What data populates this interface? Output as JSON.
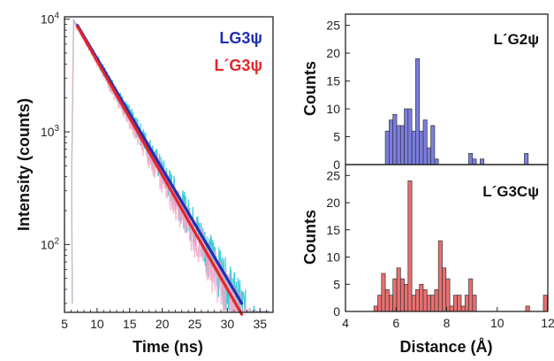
{
  "chart_data": [
    {
      "type": "line",
      "xlabel": "Time (ns)",
      "ylabel": "Intensity (counts)",
      "xlim": [
        5,
        37
      ],
      "ylim": [
        25,
        10500
      ],
      "yscale": "log",
      "x_ticks": [
        "5",
        "10",
        "15",
        "20",
        "25",
        "30",
        "35"
      ],
      "y_ticks": [
        {
          "base": "10",
          "exp": "4",
          "value": 10000
        },
        {
          "base": "10",
          "exp": "3",
          "value": 1000
        },
        {
          "base": "10",
          "exp": "2",
          "value": 100
        }
      ],
      "series": [
        {
          "name": "LG3ψ",
          "color": "#1f2fb4",
          "data_color": "#2cc6d6",
          "fit": {
            "x": [
              7,
              32.2
            ],
            "y": [
              8800,
              30
            ]
          },
          "peak_x": 6.4
        },
        {
          "name": "L´G3ψ",
          "color": "#e3262a",
          "data_color": "#f4a7c8",
          "fit": {
            "x": [
              7,
              32.2
            ],
            "y": [
              8600,
              24
            ]
          },
          "peak_x": 6.4
        }
      ],
      "legend_position": "top-right"
    },
    {
      "type": "bar",
      "label": "L´G2ψ",
      "ylabel": "Counts",
      "ylim": [
        0,
        27
      ],
      "xlim": [
        4,
        12
      ],
      "y_ticks": [
        "0",
        "5",
        "10",
        "15",
        "20",
        "25"
      ],
      "bin_width": 0.15,
      "color": "#7b7de2",
      "bins": [
        {
          "x": 5.65,
          "y": 6
        },
        {
          "x": 5.8,
          "y": 8
        },
        {
          "x": 5.95,
          "y": 9
        },
        {
          "x": 6.1,
          "y": 7
        },
        {
          "x": 6.25,
          "y": 7
        },
        {
          "x": 6.4,
          "y": 10
        },
        {
          "x": 6.55,
          "y": 10
        },
        {
          "x": 6.7,
          "y": 6
        },
        {
          "x": 6.85,
          "y": 19
        },
        {
          "x": 7.0,
          "y": 6
        },
        {
          "x": 7.15,
          "y": 8
        },
        {
          "x": 7.3,
          "y": 3
        },
        {
          "x": 7.45,
          "y": 7
        },
        {
          "x": 7.6,
          "y": 1
        },
        {
          "x": 8.95,
          "y": 2
        },
        {
          "x": 9.1,
          "y": 1
        },
        {
          "x": 9.4,
          "y": 1
        },
        {
          "x": 11.15,
          "y": 2
        }
      ]
    },
    {
      "type": "bar",
      "label": "L´G3Cψ",
      "xlabel": "Distance (Å)",
      "ylabel": "Counts",
      "ylim": [
        0,
        27
      ],
      "xlim": [
        4,
        12
      ],
      "x_ticks": [
        "4",
        "6",
        "8",
        "10",
        "12"
      ],
      "y_ticks": [
        "0",
        "5",
        "10",
        "15",
        "20",
        "25"
      ],
      "bin_width": 0.15,
      "color": "#ea6f6f",
      "bins": [
        {
          "x": 5.2,
          "y": 1
        },
        {
          "x": 5.35,
          "y": 3
        },
        {
          "x": 5.5,
          "y": 7
        },
        {
          "x": 5.65,
          "y": 4
        },
        {
          "x": 5.8,
          "y": 3
        },
        {
          "x": 5.95,
          "y": 6
        },
        {
          "x": 6.1,
          "y": 8
        },
        {
          "x": 6.25,
          "y": 6
        },
        {
          "x": 6.4,
          "y": 5
        },
        {
          "x": 6.55,
          "y": 24
        },
        {
          "x": 6.7,
          "y": 3
        },
        {
          "x": 6.85,
          "y": 4
        },
        {
          "x": 7.0,
          "y": 5
        },
        {
          "x": 7.15,
          "y": 4
        },
        {
          "x": 7.3,
          "y": 3
        },
        {
          "x": 7.45,
          "y": 3
        },
        {
          "x": 7.6,
          "y": 4
        },
        {
          "x": 7.75,
          "y": 13
        },
        {
          "x": 7.9,
          "y": 8
        },
        {
          "x": 8.05,
          "y": 6
        },
        {
          "x": 8.2,
          "y": 1
        },
        {
          "x": 8.35,
          "y": 3
        },
        {
          "x": 8.5,
          "y": 3
        },
        {
          "x": 8.65,
          "y": 1
        },
        {
          "x": 8.8,
          "y": 3
        },
        {
          "x": 8.95,
          "y": 6
        },
        {
          "x": 9.1,
          "y": 3
        },
        {
          "x": 11.2,
          "y": 1
        },
        {
          "x": 11.9,
          "y": 3
        }
      ]
    }
  ]
}
